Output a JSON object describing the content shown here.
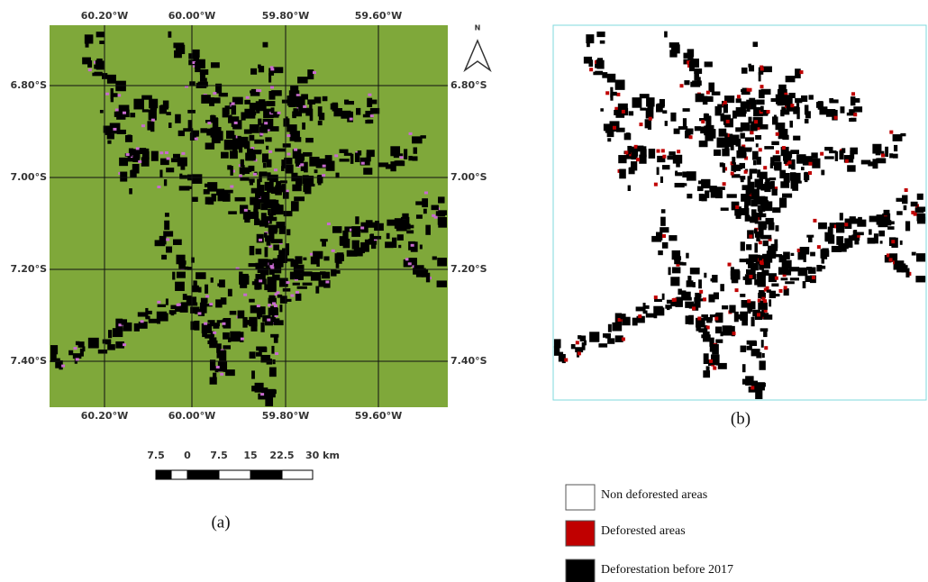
{
  "map_a": {
    "lon_labels": [
      "60.20°W",
      "60.00°W",
      "59.80°W",
      "59.60°W"
    ],
    "lat_labels": [
      "6.80°S",
      "7.00°S",
      "7.20°S",
      "7.40°S"
    ],
    "north": "N",
    "scale_labels": [
      "7.5",
      "0",
      "7.5",
      "15",
      "22.5",
      "30 km"
    ],
    "caption": "(a)"
  },
  "map_b": {
    "caption": "(b)"
  },
  "legend": [
    {
      "label": "Non deforested areas",
      "color": "#ffffff"
    },
    {
      "label": "Deforested areas",
      "color": "#c00000"
    },
    {
      "label": "Deforestation before 2017",
      "color": "#000000"
    }
  ]
}
